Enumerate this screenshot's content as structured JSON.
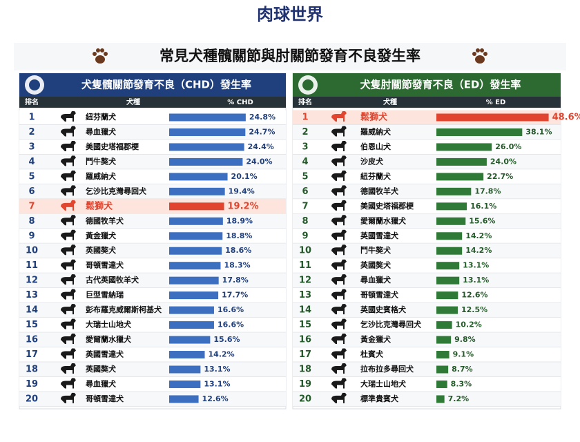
{
  "logo": "肉球世界",
  "title": "常見犬種髖關節與肘關節發育不良發生率",
  "chart_data": [
    {
      "type": "bar",
      "orientation": "horizontal",
      "title": "犬隻髖關節發育不良（CHD）發生率",
      "columns": [
        "排名",
        "犬種",
        "% CHD"
      ],
      "ranks": [
        1,
        2,
        3,
        4,
        5,
        6,
        7,
        8,
        9,
        10,
        11,
        12,
        13,
        14,
        15,
        16,
        17,
        18,
        19,
        20
      ],
      "categories": [
        "紐芬蘭犬",
        "尋血獵犬",
        "美國史塔福郡梗",
        "鬥牛獒犬",
        "羅威納犬",
        "乞沙比克灣尋回犬",
        "鬆獅犬",
        "德國牧羊犬",
        "黃金獵犬",
        "英國獒犬",
        "哥頓雪達犬",
        "古代英國牧羊犬",
        "巨型雪納瑞",
        "彭布羅克威爾斯柯基犬",
        "大瑞士山地犬",
        "愛爾蘭水獵犬",
        "英國雪達犬",
        "英國獒犬",
        "尋血獵犬",
        "哥頓雪達犬"
      ],
      "values": [
        24.8,
        24.7,
        24.4,
        24.0,
        20.1,
        19.4,
        19.2,
        18.9,
        18.8,
        18.6,
        18.3,
        17.8,
        17.7,
        16.6,
        16.6,
        15.6,
        14.2,
        13.1,
        13.1,
        12.6
      ],
      "value_labels": [
        "24.8%",
        "24.7%",
        "24.4%",
        "24.0%",
        "20.1%",
        "19.4%",
        "19.2%",
        "18.9%",
        "18.8%",
        "18.6%",
        "18.3%",
        "17.8%",
        "17.7%",
        "16.6%",
        "16.6%",
        "15.6%",
        "14.2%",
        "13.1%",
        "13.1%",
        "12.6%"
      ],
      "xlim": [
        5,
        30
      ],
      "color": "#3d6fc0",
      "header_color": "#1f3f7d",
      "label_color": "#1f3f7d",
      "highlight": 6,
      "highlight_color": "#e2452f"
    },
    {
      "type": "bar",
      "orientation": "horizontal",
      "title": "犬隻肘關節發育不良（ED）發生率",
      "columns": [
        "排名",
        "犬種",
        "% ED"
      ],
      "ranks": [
        1,
        2,
        3,
        4,
        5,
        6,
        7,
        8,
        9,
        10,
        11,
        12,
        13,
        14,
        15,
        16,
        17,
        18,
        19,
        20
      ],
      "categories": [
        "鬆獅犬",
        "羅威納犬",
        "伯恩山犬",
        "沙皮犬",
        "紐芬蘭犬",
        "德國牧羊犬",
        "美國史塔福郡梗",
        "愛爾蘭水獵犬",
        "英國雪達犬",
        "鬥牛獒犬",
        "英國獒犬",
        "尋血獵犬",
        "哥頓雪達犬",
        "英國史賓格犬",
        "乞沙比克灣尋回犬",
        "黃金獵犬",
        "杜賓犬",
        "拉布拉多尋回犬",
        "大瑞士山地犬",
        "標準貴賓犬"
      ],
      "values": [
        48.6,
        38.1,
        26.0,
        24.0,
        22.7,
        17.8,
        16.1,
        15.6,
        14.2,
        14.2,
        13.1,
        13.1,
        12.6,
        12.5,
        10.2,
        9.8,
        9.1,
        8.7,
        8.3,
        7.2
      ],
      "value_labels": [
        "48.6%",
        "38.1%",
        "26.0%",
        "24.0%",
        "22.7%",
        "17.8%",
        "16.1%",
        "15.6%",
        "14.2%",
        "14.2%",
        "13.1%",
        "13.1%",
        "12.6%",
        "12.5%",
        "10.2%",
        "9.8%",
        "9.1%",
        "8.7%",
        "8.3%",
        "7.2%"
      ],
      "xlim": [
        4,
        52
      ],
      "color": "#2f7a36",
      "header_color": "#2c6a31",
      "label_color": "#245a29",
      "highlight": 0,
      "highlight_color": "#e2452f"
    }
  ]
}
